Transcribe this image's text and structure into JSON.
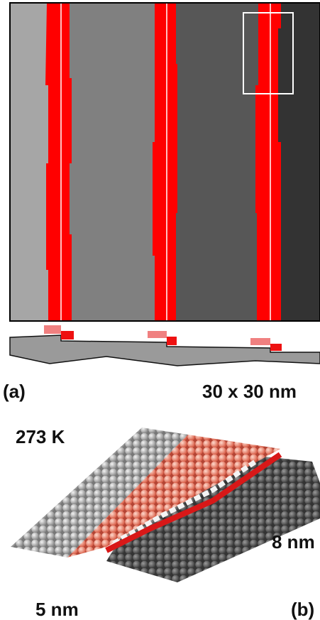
{
  "labels": {
    "panel_a": "(a)",
    "scale_a": "30 x 30 nm",
    "temperature": "273 K",
    "dim_y": "8 nm",
    "dim_x": "5 nm",
    "panel_b": "(b)"
  }
}
